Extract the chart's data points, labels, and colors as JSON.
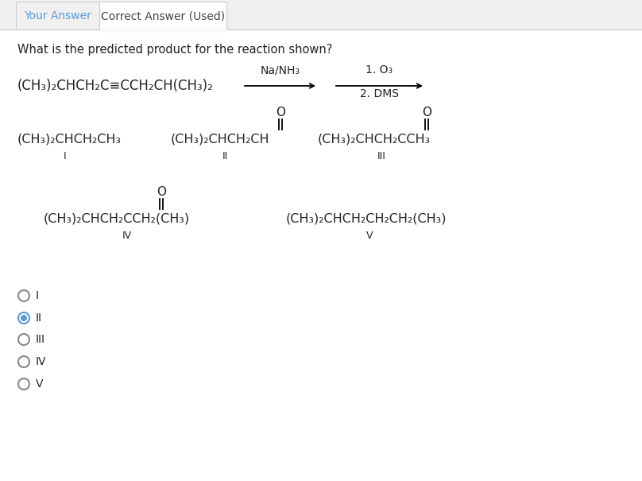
{
  "tab1_text": "Your Answer",
  "tab2_text": "Correct Answer (Used)",
  "question": "What is the predicted product for the reaction shown?",
  "reactant": "(CH₃)₂CHCH₂C≡CCH₂CH(CH₃)₂",
  "reagent1": "Na/NH₃",
  "reagent2_line1": "1. O₃",
  "reagent2_line2": "2. DMS",
  "selected_answer": "II",
  "tab1_text_color": "#5b9bd5",
  "tab2_text_color": "#444444",
  "bg_color": "#ffffff",
  "outer_bg": "#f0f0f0",
  "radio_selected_color": "#5b9bd5",
  "radio_unselected_color": "#888888",
  "text_color": "#222222",
  "tab_border_color": "#cccccc",
  "font_size_question": 10.5,
  "font_size_formula": 11.5,
  "font_size_label": 9,
  "font_size_tab": 10,
  "font_size_radio": 10
}
